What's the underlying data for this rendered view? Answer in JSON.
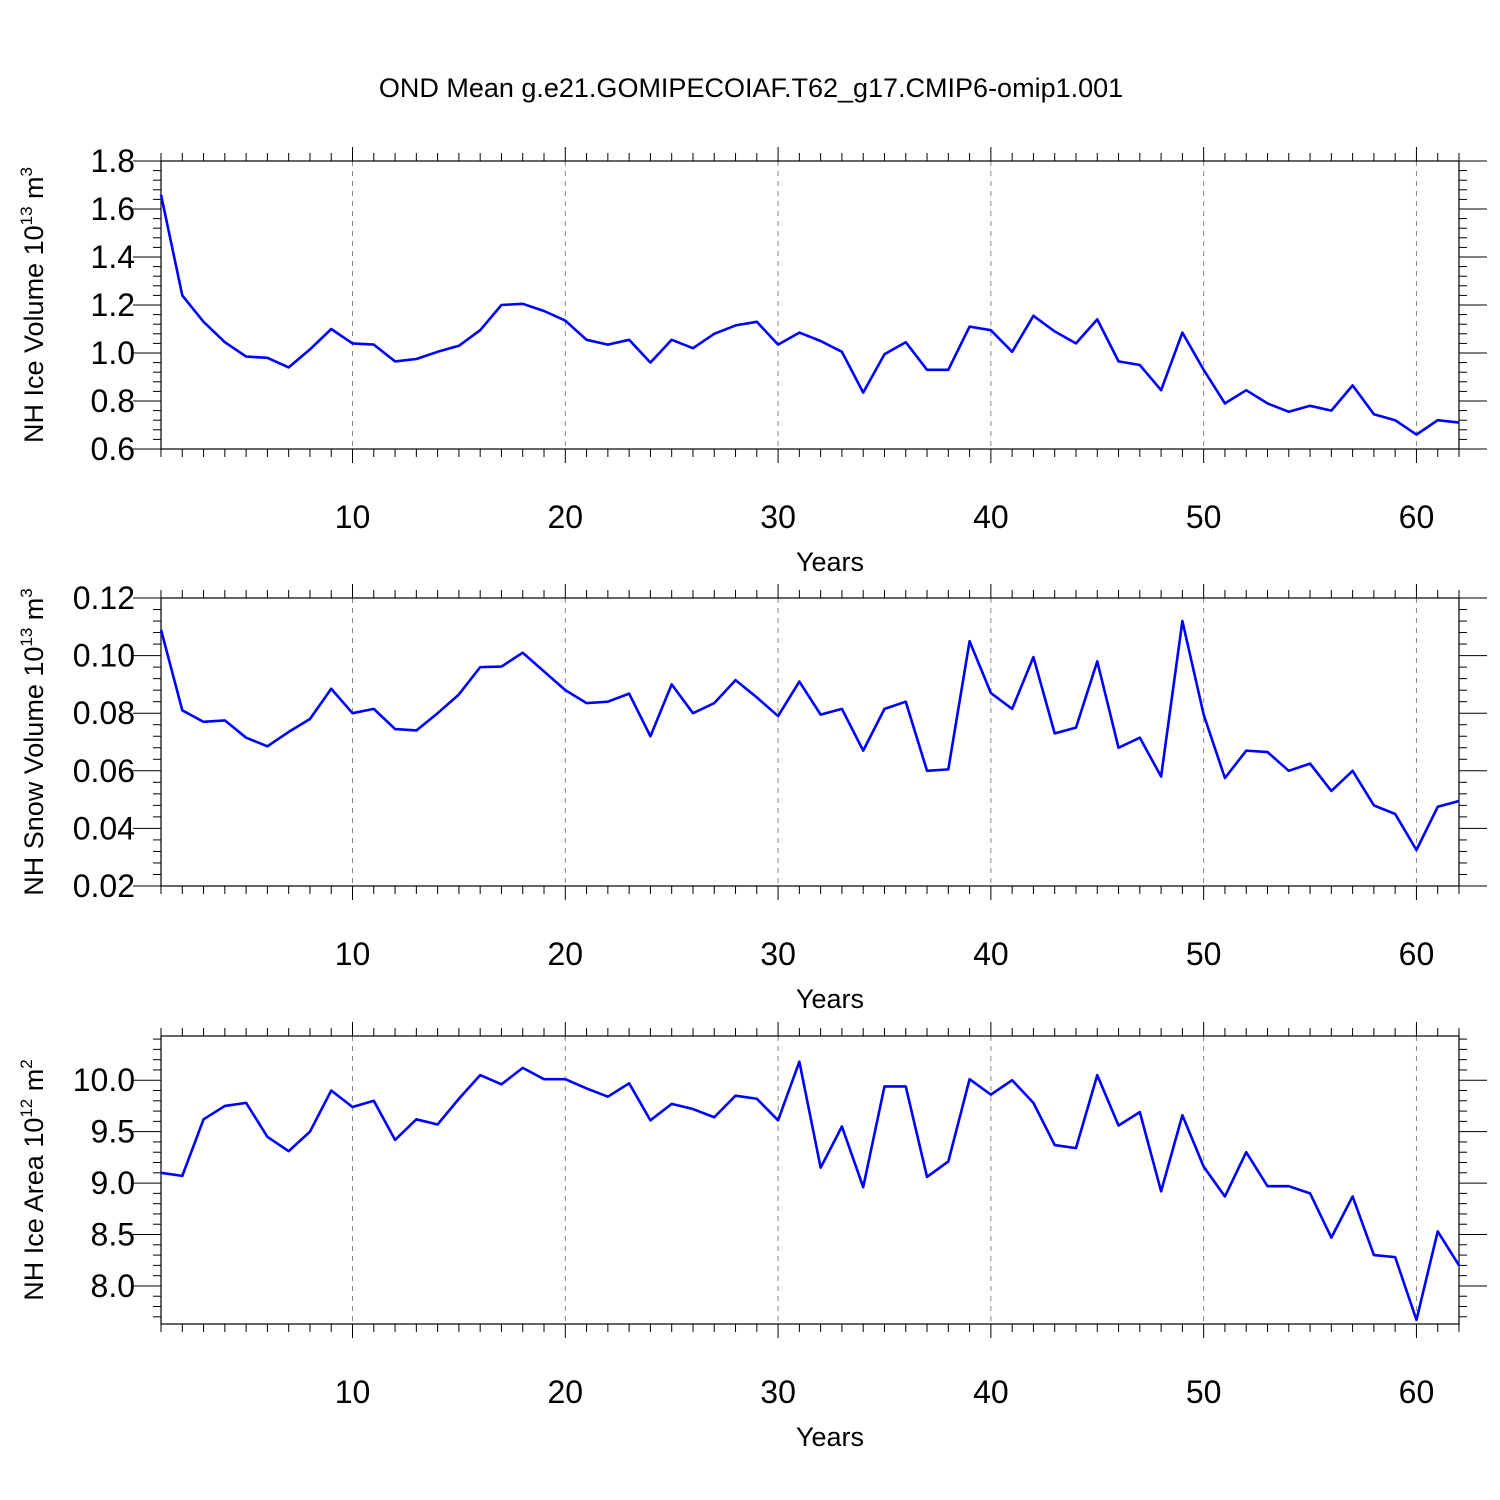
{
  "title": "OND Mean g.e21.GOMIPECOIAF.T62_g17.CMIP6-omip1.001",
  "colors": {
    "line": "#0000ff",
    "axes": "#000000",
    "grid": "#888888"
  },
  "chart_data": [
    {
      "type": "line",
      "xlabel": "Years",
      "ylabel": {
        "text": "NH Ice Volume 10",
        "sup1": "13",
        "mid": " m",
        "sup2": "3"
      },
      "xlim": [
        1,
        62
      ],
      "ylim": [
        0.6,
        1.8
      ],
      "x_ticks": [
        10,
        20,
        30,
        40,
        50,
        60
      ],
      "y_ticks": [
        0.6,
        0.8,
        1.0,
        1.2,
        1.4,
        1.6,
        1.8
      ],
      "y_tick_labels": [
        "0.6",
        "0.8",
        "1.0",
        "1.2",
        "1.4",
        "1.6",
        "1.8"
      ],
      "y_minor_step": 0.04,
      "grid": "vertical dashed at major x ticks",
      "series": [
        {
          "values": [
            1.66,
            1.24,
            1.13,
            1.045,
            0.985,
            0.98,
            0.94,
            1.015,
            1.1,
            1.04,
            1.035,
            0.965,
            0.975,
            1.005,
            1.03,
            1.095,
            1.2,
            1.205,
            1.175,
            1.135,
            1.055,
            1.035,
            1.055,
            0.96,
            1.055,
            1.02,
            1.08,
            1.115,
            1.13,
            1.035,
            1.085,
            1.05,
            1.005,
            0.835,
            0.995,
            1.045,
            0.93,
            0.93,
            1.11,
            1.095,
            1.005,
            1.155,
            1.09,
            1.04,
            1.14,
            0.965,
            0.95,
            0.845,
            1.085,
            0.93,
            0.79,
            0.845,
            0.79,
            0.755,
            0.78,
            0.76,
            0.865,
            0.745,
            0.72,
            0.66,
            0.72,
            0.71
          ]
        }
      ]
    },
    {
      "type": "line",
      "xlabel": "Years",
      "ylabel": {
        "text": "NH Snow Volume 10",
        "sup1": "13",
        "mid": " m",
        "sup2": "3"
      },
      "xlim": [
        1,
        62
      ],
      "ylim": [
        0.02,
        0.12
      ],
      "x_ticks": [
        10,
        20,
        30,
        40,
        50,
        60
      ],
      "y_ticks": [
        0.02,
        0.04,
        0.06,
        0.08,
        0.1,
        0.12
      ],
      "y_tick_labels": [
        "0.02",
        "0.04",
        "0.06",
        "0.08",
        "0.10",
        "0.12"
      ],
      "y_minor_step": 0.004,
      "grid": "vertical dashed at major x ticks",
      "series": [
        {
          "values": [
            0.109,
            0.081,
            0.077,
            0.0775,
            0.0715,
            0.0685,
            0.0735,
            0.078,
            0.0885,
            0.08,
            0.0815,
            0.0745,
            0.074,
            0.08,
            0.0865,
            0.096,
            0.0962,
            0.101,
            0.0945,
            0.088,
            0.0835,
            0.084,
            0.0868,
            0.072,
            0.09,
            0.08,
            0.0835,
            0.0915,
            0.0855,
            0.079,
            0.091,
            0.0795,
            0.0815,
            0.067,
            0.0815,
            0.084,
            0.06,
            0.0605,
            0.105,
            0.087,
            0.0815,
            0.0995,
            0.073,
            0.075,
            0.098,
            0.068,
            0.0715,
            0.058,
            0.112,
            0.0795,
            0.0575,
            0.067,
            0.0665,
            0.06,
            0.0625,
            0.053,
            0.06,
            0.048,
            0.045,
            0.0325,
            0.0475,
            0.0495
          ]
        }
      ]
    },
    {
      "type": "line",
      "xlabel": "Years",
      "ylabel": {
        "text": "NH Ice Area 10",
        "sup1": "12",
        "mid": " m",
        "sup2": "2"
      },
      "xlim": [
        1,
        62
      ],
      "ylim": [
        7.63,
        10.43
      ],
      "x_ticks": [
        10,
        20,
        30,
        40,
        50,
        60
      ],
      "y_ticks": [
        8.0,
        8.5,
        9.0,
        9.5,
        10.0
      ],
      "y_tick_labels": [
        "8.0",
        "8.5",
        "9.0",
        "9.5",
        "10.0"
      ],
      "y_minor_step": 0.1,
      "grid": "vertical dashed at major x ticks",
      "series": [
        {
          "values": [
            9.1,
            9.07,
            9.62,
            9.75,
            9.78,
            9.45,
            9.31,
            9.5,
            9.9,
            9.74,
            9.8,
            9.42,
            9.62,
            9.57,
            9.82,
            10.05,
            9.96,
            10.12,
            10.01,
            10.01,
            9.92,
            9.84,
            9.97,
            9.61,
            9.77,
            9.72,
            9.64,
            9.85,
            9.82,
            9.61,
            10.18,
            9.15,
            9.55,
            8.96,
            9.94,
            9.94,
            9.06,
            9.21,
            10.01,
            9.86,
            10.0,
            9.78,
            9.37,
            9.34,
            10.05,
            9.56,
            9.69,
            8.92,
            9.66,
            9.16,
            8.87,
            9.3,
            8.97,
            8.97,
            8.9,
            8.47,
            8.87,
            8.3,
            8.28,
            7.67,
            8.53,
            8.2
          ]
        }
      ]
    }
  ]
}
